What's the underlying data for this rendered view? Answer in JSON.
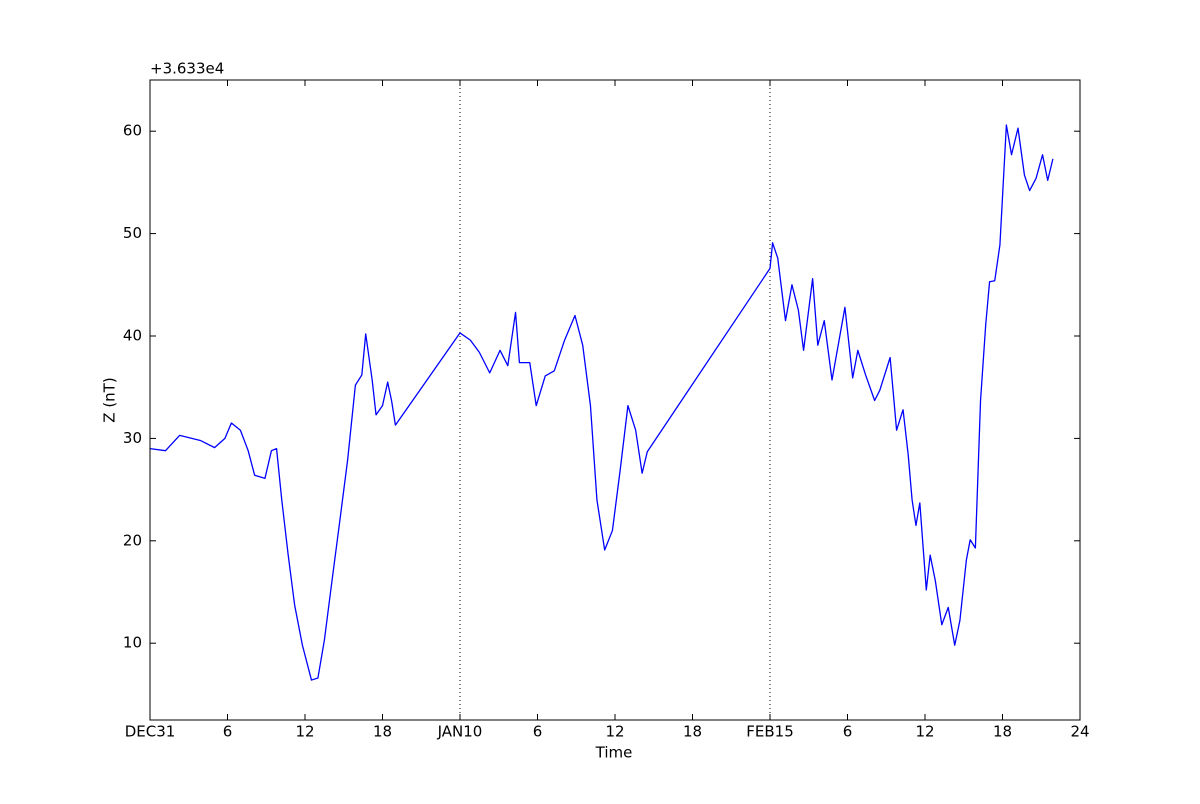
{
  "chart_data": {
    "type": "line",
    "x_label": "Time",
    "y_label": "Z (nT)",
    "y_offset_label": "+3.633e4",
    "color": "#0000ff",
    "xlim": [
      0,
      72
    ],
    "ylim": [
      2.5,
      65
    ],
    "xticks": [
      {
        "value": 0,
        "label": "DEC31"
      },
      {
        "value": 6,
        "label": "6"
      },
      {
        "value": 12,
        "label": "12"
      },
      {
        "value": 18,
        "label": "18"
      },
      {
        "value": 24,
        "label": "JAN10"
      },
      {
        "value": 30,
        "label": "6"
      },
      {
        "value": 36,
        "label": "12"
      },
      {
        "value": 42,
        "label": "18"
      },
      {
        "value": 48,
        "label": "FEB15"
      },
      {
        "value": 54,
        "label": "6"
      },
      {
        "value": 60,
        "label": "12"
      },
      {
        "value": 66,
        "label": "18"
      },
      {
        "value": 72,
        "label": "24"
      }
    ],
    "yticks": [
      10,
      20,
      30,
      40,
      50,
      60
    ],
    "vlines": [
      24,
      48
    ],
    "x": [
      0,
      1.2,
      2.3,
      3.9,
      5.0,
      5.8,
      6.3,
      7.0,
      7.6,
      8.1,
      8.9,
      9.4,
      9.8,
      10.2,
      10.7,
      11.2,
      11.8,
      12.5,
      13.0,
      13.5,
      14.1,
      14.7,
      15.3,
      15.9,
      16.4,
      16.7,
      17.2,
      17.5,
      18.0,
      18.4,
      18.7,
      19.0,
      24.0,
      24.8,
      25.5,
      26.3,
      27.1,
      27.7,
      28.3,
      28.6,
      29.4,
      29.9,
      30.6,
      31.3,
      32.1,
      32.9,
      33.5,
      34.1,
      34.6,
      35.2,
      35.8,
      36.4,
      37.0,
      37.6,
      38.1,
      38.5,
      48.0,
      48.2,
      48.6,
      49.2,
      49.7,
      50.2,
      50.6,
      51.3,
      51.7,
      52.2,
      52.8,
      53.8,
      54.4,
      54.8,
      55.4,
      56.1,
      56.5,
      57.3,
      57.8,
      58.3,
      58.7,
      59.0,
      59.3,
      59.6,
      60.1,
      60.4,
      60.8,
      61.3,
      61.8,
      62.3,
      62.7,
      63.2,
      63.5,
      63.9,
      64.3,
      64.7,
      65.0,
      65.4,
      65.8,
      66.3,
      66.7,
      67.2,
      67.7,
      68.1,
      68.6,
      69.1,
      69.5,
      69.9
    ],
    "values": [
      29.0,
      28.8,
      30.3,
      29.8,
      29.1,
      30.0,
      31.5,
      30.8,
      28.8,
      26.4,
      26.1,
      28.8,
      29.0,
      24.0,
      18.6,
      13.7,
      9.8,
      6.4,
      6.6,
      10.3,
      16.2,
      22.0,
      27.9,
      35.2,
      36.2,
      40.2,
      35.7,
      32.3,
      33.2,
      35.5,
      33.7,
      31.3,
      40.3,
      39.6,
      38.4,
      36.4,
      38.6,
      37.1,
      42.3,
      37.4,
      37.4,
      33.2,
      36.1,
      36.6,
      39.6,
      42.0,
      39.1,
      33.2,
      24.0,
      19.1,
      21.0,
      26.9,
      33.2,
      30.8,
      26.6,
      28.7,
      46.6,
      49.1,
      47.6,
      41.5,
      45.0,
      42.5,
      38.6,
      45.6,
      39.1,
      41.5,
      35.7,
      42.8,
      35.9,
      38.6,
      36.2,
      33.7,
      34.7,
      37.9,
      30.8,
      32.8,
      28.4,
      24.0,
      21.5,
      23.7,
      15.2,
      18.6,
      16.1,
      11.8,
      13.5,
      9.8,
      12.2,
      18.1,
      20.1,
      19.3,
      33.7,
      41.1,
      45.3,
      45.4,
      48.9,
      60.6,
      57.7,
      60.3,
      55.7,
      54.2,
      55.4,
      57.7,
      55.2,
      57.3
    ]
  }
}
